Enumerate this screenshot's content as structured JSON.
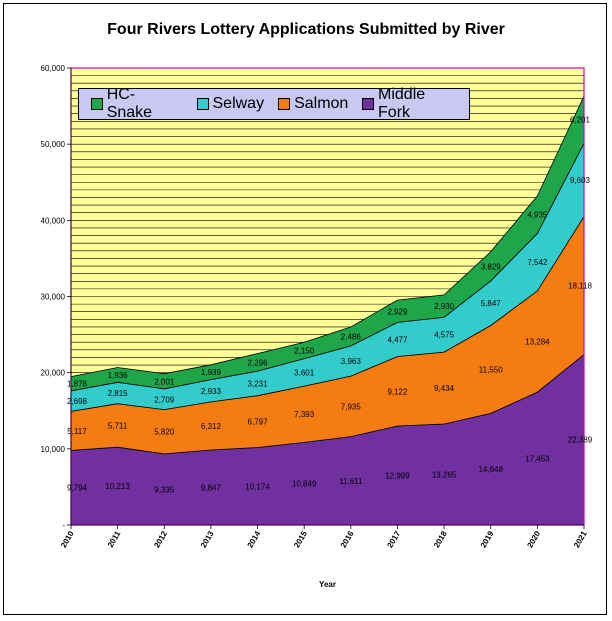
{
  "chart_data": {
    "type": "area",
    "stacked": true,
    "title": "Four Rivers Lottery Applications Submitted by River",
    "xlabel": "Year",
    "ylabel": "",
    "ylim": [
      0,
      60000
    ],
    "yticks": [
      "-",
      "10,000",
      "20,000",
      "30,000",
      "40,000",
      "50,000",
      "60,000"
    ],
    "categories": [
      "2010",
      "2011",
      "2012",
      "2013",
      "2014",
      "2015",
      "2016",
      "2017",
      "2018",
      "2019",
      "2020",
      "2021"
    ],
    "grid": true,
    "legend_position": "top-left",
    "series": [
      {
        "name": "Middle Fork",
        "color": "#7030a0",
        "values": [
          9794,
          10213,
          9335,
          9847,
          10174,
          10849,
          11611,
          12999,
          13265,
          14648,
          17453,
          22389
        ],
        "labels": [
          "9,794",
          "10,213",
          "9,335",
          "9,847",
          "10,174",
          "10,849",
          "11,611",
          "12,999",
          "13,265",
          "14,648",
          "17,453",
          "22,389"
        ]
      },
      {
        "name": "Salmon",
        "color": "#f57c10",
        "values": [
          5117,
          5711,
          5820,
          6312,
          6797,
          7393,
          7935,
          9122,
          9434,
          11550,
          13284,
          18118
        ],
        "labels": [
          "5,117",
          "5,711",
          "5,820",
          "6,312",
          "6,797",
          "7,393",
          "7,935",
          "9,122",
          "9,434",
          "11,550",
          "13,284",
          "18,118"
        ]
      },
      {
        "name": "Selway",
        "color": "#33cccc",
        "values": [
          2698,
          2815,
          2709,
          2933,
          3231,
          3601,
          3963,
          4477,
          4575,
          5847,
          7542,
          9603
        ],
        "labels": [
          "2,698",
          "2,815",
          "2,709",
          "2,933",
          "3,231",
          "3,601",
          "3,963",
          "4,477",
          "4,575",
          "5,847",
          "7,542",
          "9,603"
        ]
      },
      {
        "name": "HC- Snake",
        "color": "#1fa64a",
        "values": [
          1878,
          1936,
          2001,
          1939,
          2296,
          2150,
          2486,
          2929,
          2930,
          3829,
          4935,
          6201
        ],
        "labels": [
          "1,878",
          "1,936",
          "2,001",
          "1,939",
          "2,296",
          "2,150",
          "2,486",
          "2,929",
          "2,930",
          "3,829",
          "4,935",
          "6,201"
        ]
      }
    ],
    "legend_order": [
      "HC- Snake",
      "Selway",
      "Salmon",
      "Middle Fork"
    ],
    "plot_background": "#ffff99",
    "plot_border": "#cc00cc"
  }
}
